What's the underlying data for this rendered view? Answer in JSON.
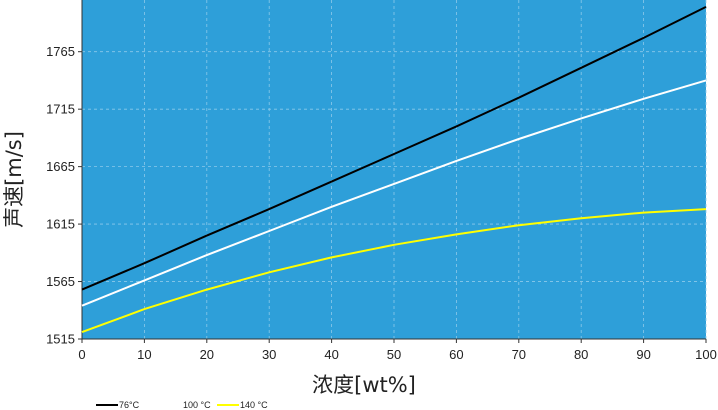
{
  "chart_data": {
    "type": "line",
    "xlabel": "浓度[wt%]",
    "ylabel": "声速[m/s]",
    "xlim": [
      0,
      100
    ],
    "ylim": [
      1515,
      1810
    ],
    "x_ticks": [
      0,
      10,
      20,
      30,
      40,
      50,
      60,
      70,
      80,
      90,
      100
    ],
    "y_ticks": [
      1515,
      1565,
      1615,
      1665,
      1715,
      1765
    ],
    "grid": true,
    "legend_position": "bottom-left",
    "plot_background": "#2e9fd9",
    "x": [
      0,
      10,
      20,
      30,
      40,
      50,
      60,
      70,
      80,
      90,
      100
    ],
    "series": [
      {
        "name": "76°C",
        "color": "#000000",
        "values": [
          1558,
          1581,
          1605,
          1628,
          1652,
          1676,
          1700,
          1725,
          1751,
          1777,
          1804
        ]
      },
      {
        "name": "100 °C",
        "color": "#ffffff",
        "values": [
          1544,
          1566,
          1588,
          1609,
          1630,
          1650,
          1670,
          1689,
          1707,
          1724,
          1740
        ]
      },
      {
        "name": "140 °C",
        "color": "#ffff00",
        "values": [
          1521,
          1541,
          1558,
          1573,
          1586,
          1597,
          1606,
          1614,
          1620,
          1625,
          1628
        ]
      }
    ]
  }
}
